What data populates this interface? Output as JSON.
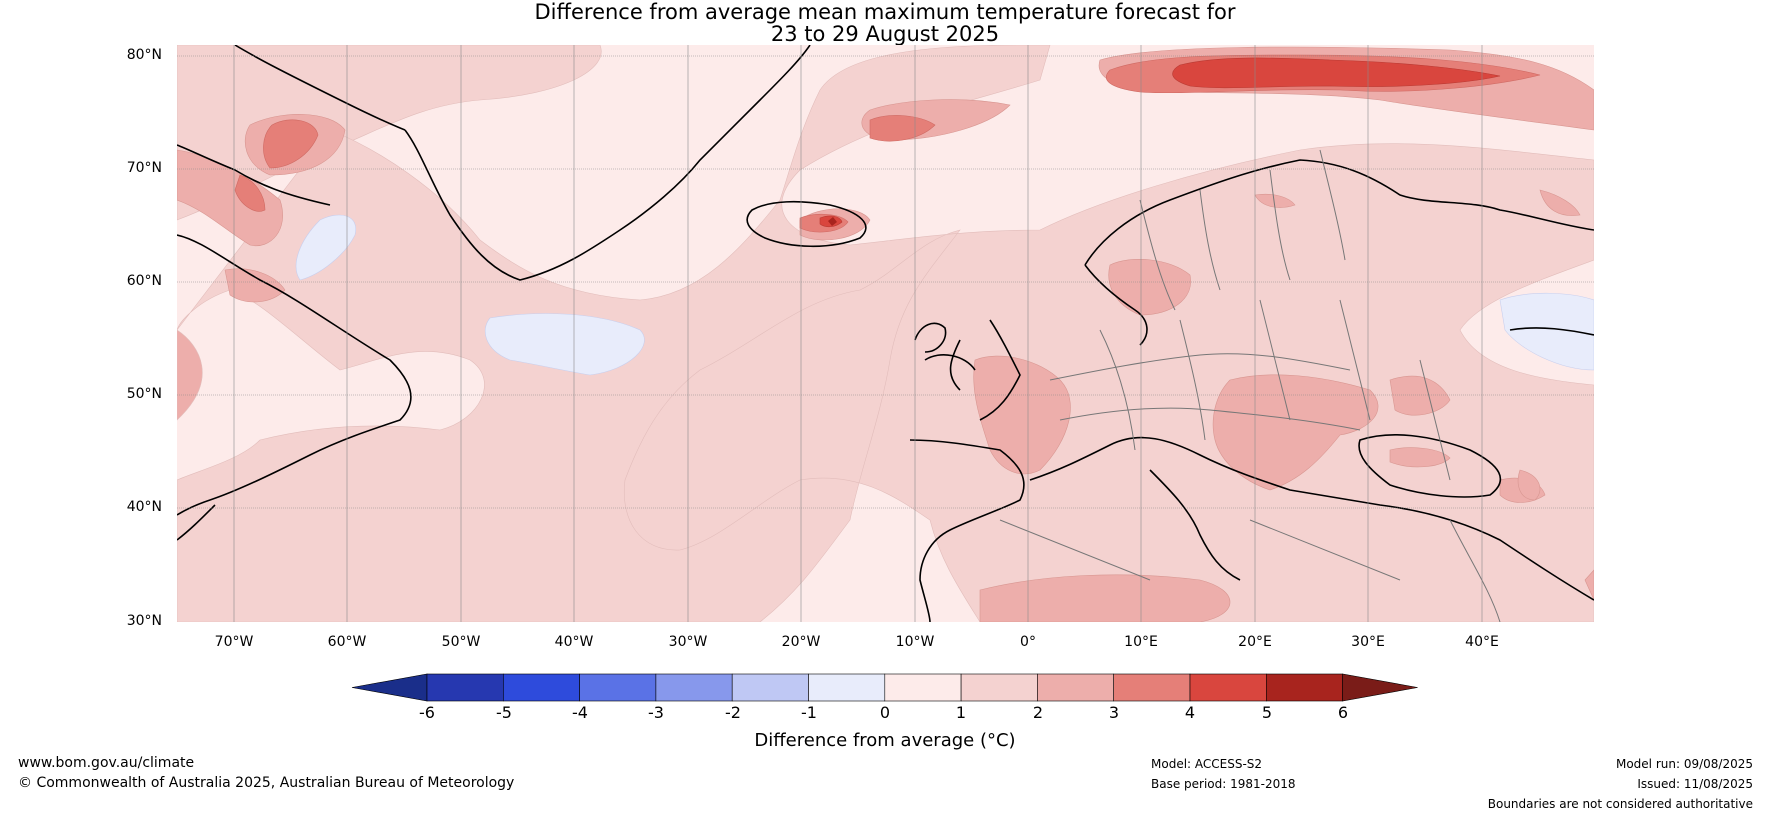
{
  "title": {
    "line1": "Difference from average mean maximum temperature forecast for",
    "line2": "23 to 29 August 2025"
  },
  "latitude_labels": [
    "80°N",
    "70°N",
    "60°N",
    "50°N",
    "40°N",
    "30°N"
  ],
  "longitude_labels": [
    "70°W",
    "60°W",
    "50°W",
    "40°W",
    "30°W",
    "20°W",
    "10°W",
    "0°",
    "10°E",
    "20°E",
    "30°E",
    "40°E"
  ],
  "colorbar": {
    "ticks": [
      "-6",
      "-5",
      "-4",
      "-3",
      "-2",
      "-1",
      "0",
      "1",
      "2",
      "3",
      "4",
      "5",
      "6"
    ],
    "colors": [
      "#1a2e8a",
      "#2638b0",
      "#2e4bdc",
      "#5a72e6",
      "#8798ec",
      "#bfc8f4",
      "#e8ecfb",
      "#fdebea",
      "#f4d2d0",
      "#edaeab",
      "#e57f78",
      "#d9463e",
      "#a8241e",
      "#7a1c18"
    ],
    "label": "Difference from average (°C)"
  },
  "footer": {
    "website": "www.bom.gov.au/climate",
    "copyright": "© Commonwealth of Australia 2025, Australian Bureau of Meteorology",
    "model": "Model: ACCESS-S2",
    "base_period": "Base period: 1981-2018",
    "model_run": "Model run: 09/08/2025",
    "issued": "Issued: 11/08/2025",
    "disclaimer": "Boundaries are not considered authoritative"
  }
}
